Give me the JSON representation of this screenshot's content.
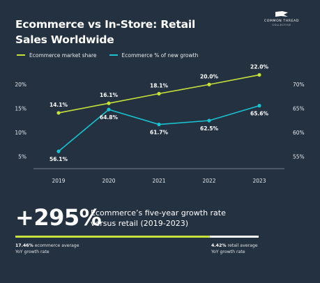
{
  "header": {
    "title_line1": "Ecommerce vs In-Store: Retail",
    "title_line2": "Sales Worldwide"
  },
  "brand": {
    "name": "COMMON THREAD",
    "sub": "COLLECTIVE"
  },
  "colors": {
    "background": "#243140",
    "ecommerce_share": "#c6e13a",
    "new_growth": "#19c2d0",
    "axis": "#8f9aa6"
  },
  "chart_data": {
    "type": "line",
    "categories": [
      "2019",
      "2020",
      "2021",
      "2022",
      "2023"
    ],
    "series": [
      {
        "name": "Ecommerce market share",
        "axis": "left",
        "values": [
          14.1,
          16.1,
          18.1,
          20.0,
          22.0
        ],
        "labels": [
          "14.1%",
          "16.1%",
          "18.1%",
          "20.0%",
          "22.0%"
        ]
      },
      {
        "name": "Ecommerce % of new growth",
        "axis": "right",
        "values": [
          56.1,
          64.8,
          61.7,
          62.5,
          65.6
        ],
        "labels": [
          "56.1%",
          "64.8%",
          "61.7%",
          "62.5%",
          "65.6%"
        ]
      }
    ],
    "y_left": {
      "ticks": [
        "5%",
        "10%",
        "15%",
        "20%"
      ],
      "tick_values": [
        5,
        10,
        15,
        20
      ],
      "range": [
        2.5,
        22.5
      ]
    },
    "y_right": {
      "ticks": [
        "55%",
        "60%",
        "65%",
        "70%"
      ],
      "tick_values": [
        55,
        60,
        65,
        70
      ],
      "range": [
        52.5,
        72.5
      ]
    },
    "grid": false,
    "legend_position": "top-left"
  },
  "highlight": {
    "value": "+295%",
    "caption": "Ecommerce’s five-year growth rate versus retail (2019-2023)"
  },
  "stats": {
    "ecommerce_value": "17.46%",
    "ecommerce_label1": "ecommerce average",
    "ecommerce_label2": "YoY growth rate",
    "retail_value": "4.42%",
    "retail_label1": "retail average",
    "retail_label2": "YoY growth rate",
    "ecommerce_fraction": 0.8
  }
}
